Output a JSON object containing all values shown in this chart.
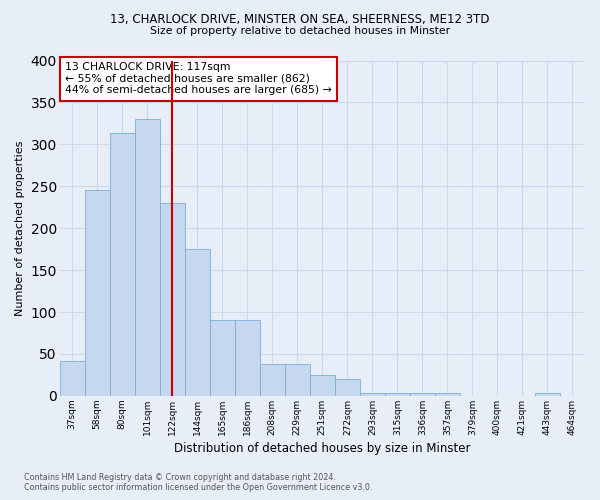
{
  "title_line1": "13, CHARLOCK DRIVE, MINSTER ON SEA, SHEERNESS, ME12 3TD",
  "title_line2": "Size of property relative to detached houses in Minster",
  "xlabel": "Distribution of detached houses by size in Minster",
  "ylabel": "Number of detached properties",
  "categories": [
    "37sqm",
    "58sqm",
    "80sqm",
    "101sqm",
    "122sqm",
    "144sqm",
    "165sqm",
    "186sqm",
    "208sqm",
    "229sqm",
    "251sqm",
    "272sqm",
    "293sqm",
    "315sqm",
    "336sqm",
    "357sqm",
    "379sqm",
    "400sqm",
    "421sqm",
    "443sqm",
    "464sqm"
  ],
  "values": [
    42,
    245,
    313,
    330,
    230,
    175,
    90,
    90,
    38,
    38,
    25,
    20,
    4,
    4,
    4,
    3,
    0,
    0,
    0,
    3,
    0
  ],
  "bar_color": "#c5d8ef",
  "bar_edge_color": "#7aafd4",
  "vline_color": "#cc0000",
  "vline_x_index": 4,
  "marker_label": "13 CHARLOCK DRIVE: 117sqm",
  "annotation_line1": "← 55% of detached houses are smaller (862)",
  "annotation_line2": "44% of semi-detached houses are larger (685) →",
  "annotation_box_color": "#ffffff",
  "annotation_box_edge": "#cc0000",
  "footnote_line1": "Contains HM Land Registry data © Crown copyright and database right 2024.",
  "footnote_line2": "Contains public sector information licensed under the Open Government Licence v3.0.",
  "background_color": "#e8eef8",
  "grid_color": "#d0d8e8",
  "ylim": [
    0,
    400
  ],
  "yticks": [
    0,
    50,
    100,
    150,
    200,
    250,
    300,
    350,
    400
  ]
}
